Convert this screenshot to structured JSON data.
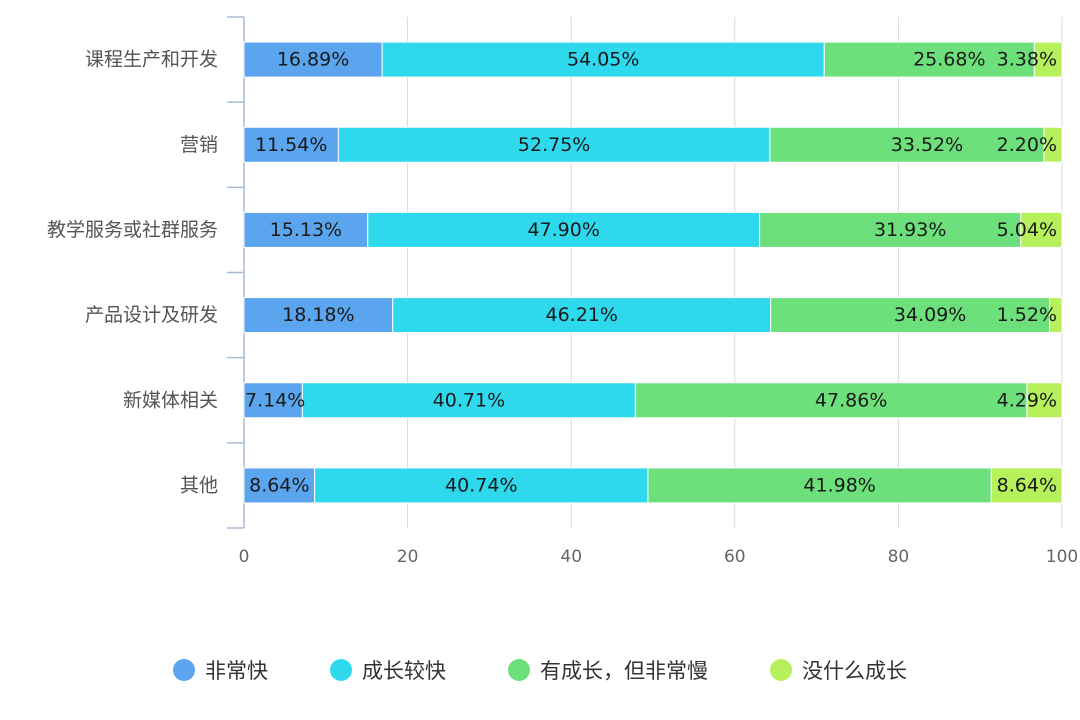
{
  "chart_data": {
    "type": "bar",
    "orientation": "horizontal",
    "stacked": true,
    "categories": [
      "课程生产和开发",
      "营销",
      "教学服务或社群服务",
      "产品设计及研发",
      "新媒体相关",
      "其他"
    ],
    "series": [
      {
        "name": "非常快",
        "color": "#5aa5ee",
        "values": [
          16.89,
          11.54,
          15.13,
          18.18,
          7.14,
          8.64
        ]
      },
      {
        "name": "成长较快",
        "color": "#2fd9ed",
        "values": [
          54.05,
          52.75,
          47.9,
          46.21,
          40.71,
          40.74
        ]
      },
      {
        "name": "有成长，但非常慢",
        "color": "#6de07b",
        "values": [
          25.68,
          33.52,
          31.93,
          34.09,
          47.86,
          41.98
        ]
      },
      {
        "name": "没什么成长",
        "color": "#b6f05b",
        "values": [
          3.38,
          2.2,
          5.04,
          1.52,
          4.29,
          8.64
        ]
      }
    ],
    "data_labels": [
      [
        "16.89%",
        "11.54%",
        "15.13%",
        "18.18%",
        "7.14%",
        "8.64%"
      ],
      [
        "54.05%",
        "52.75%",
        "47.90%",
        "46.21%",
        "40.71%",
        "40.74%"
      ],
      [
        "25.68%",
        "33.52%",
        "31.93%",
        "34.09%",
        "47.86%",
        "41.98%"
      ],
      [
        "3.38%",
        "2.20%",
        "5.04%",
        "1.52%",
        "4.29%",
        "8.64%"
      ]
    ],
    "xlim": [
      0,
      100
    ],
    "xticks": [
      0,
      20,
      40,
      60,
      80,
      100
    ],
    "grid": "vertical",
    "legend": "bottom"
  }
}
